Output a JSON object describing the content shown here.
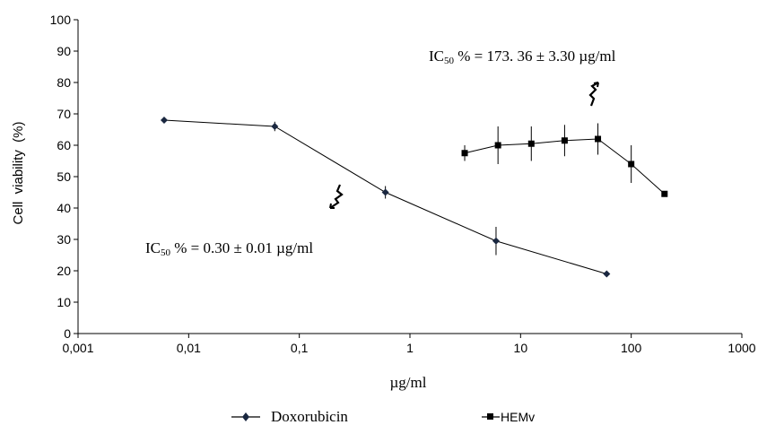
{
  "chart_data": {
    "type": "line",
    "x_scale": "log",
    "xlabel": "µg/ml",
    "ylabel": "Cell  viability  (%)",
    "xlim": [
      0.001,
      1000
    ],
    "ylim": [
      0,
      100
    ],
    "x_ticks": [
      "0,001",
      "0,01",
      "0,1",
      "1",
      "10",
      "100",
      "1000"
    ],
    "y_ticks": [
      "0",
      "10",
      "20",
      "30",
      "40",
      "50",
      "60",
      "70",
      "80",
      "90",
      "100"
    ],
    "grid": false,
    "legend_position": "bottom",
    "series": [
      {
        "name": "Doxorubicin",
        "marker": "diamond",
        "x": [
          0.006,
          0.06,
          0.6,
          6,
          60
        ],
        "y": [
          68,
          66,
          45,
          29.5,
          19
        ],
        "error": [
          0,
          1.5,
          2,
          4.5,
          0
        ]
      },
      {
        "name": "HEMv",
        "marker": "square",
        "x": [
          3.125,
          6.25,
          12.5,
          25,
          50,
          100,
          200
        ],
        "y": [
          57.5,
          60,
          60.5,
          61.5,
          62,
          54,
          44.5
        ],
        "error": [
          2.5,
          6,
          5.5,
          5,
          5,
          6,
          0
        ]
      }
    ],
    "annotations": {
      "ic50_hemv": {
        "prefix": "IC",
        "sub": "50",
        "text": " % = 173. 36 ± 3.30 µg/ml"
      },
      "ic50_dox": {
        "prefix": "IC",
        "sub": "50",
        "text": " % = 0.30 ± 0.01 µg/ml"
      }
    }
  }
}
